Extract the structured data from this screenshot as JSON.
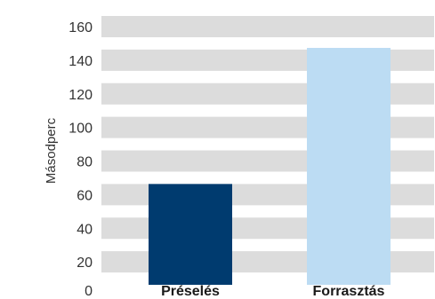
{
  "chart_data": {
    "type": "bar",
    "categories": [
      "Préselés",
      "Forrasztás"
    ],
    "values": [
      60,
      141
    ],
    "xlabel": "",
    "ylabel": "Másodperc",
    "ylim": [
      0,
      160
    ],
    "yticks": [
      0,
      20,
      40,
      60,
      80,
      100,
      120,
      140,
      160
    ],
    "grid": "horizontal bands",
    "bar_colors": [
      "#003b6f",
      "#bcdcf3"
    ],
    "band_color": "#dcdcdc"
  }
}
